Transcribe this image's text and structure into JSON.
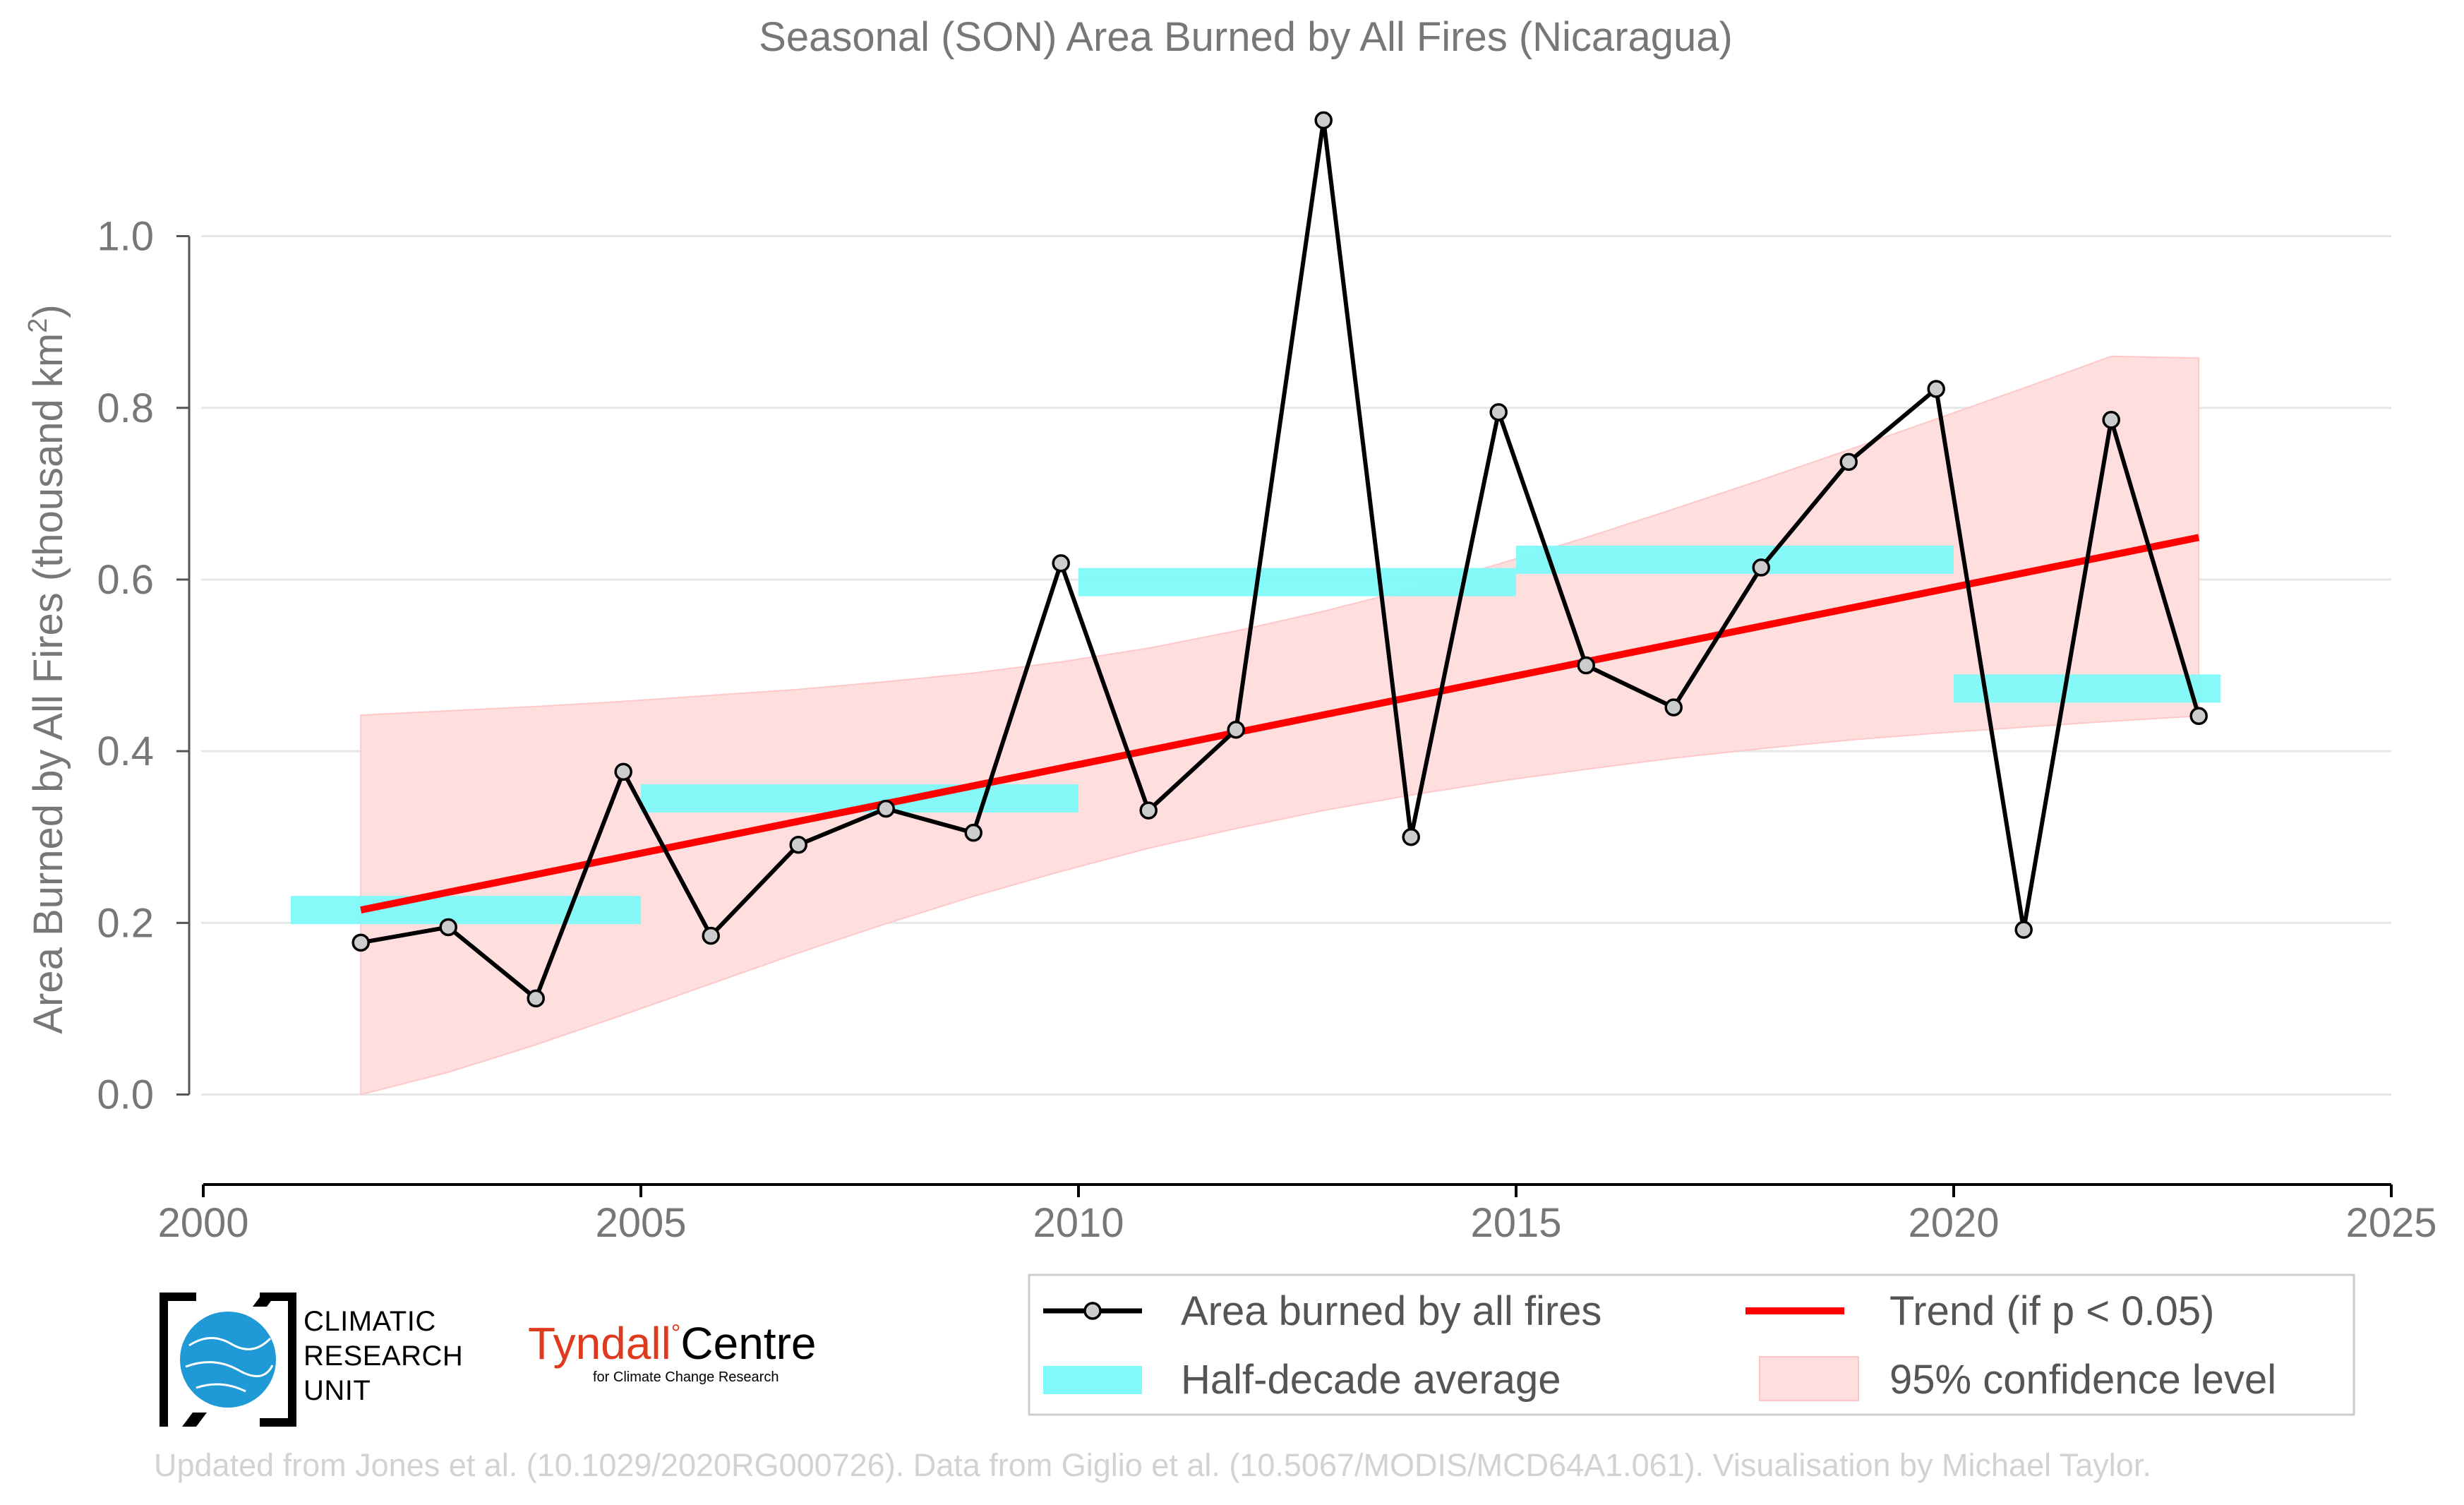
{
  "colors": {
    "title": "#777777",
    "line": "#000000",
    "marker_fill": "#cccccc",
    "half_decade": "#7ff9f9",
    "trend": "#ff0000",
    "confidence": "#ffdede",
    "grid": "#e6e6e6",
    "footer": "#d2d2d2",
    "tyndall_red": "#e03a1e",
    "cru_blue": "#1f9ad6"
  },
  "chart_data": {
    "type": "line",
    "title": "Seasonal (SON) Area Burned by All Fires (Nicaragua)",
    "ylabel_main": "Area Burned by All Fires (thousand km",
    "ylabel_sup": "2",
    "ylabel_close": ")",
    "xlabel": "",
    "xlim": [
      2000,
      2025
    ],
    "ylim": [
      -0.09,
      1.16
    ],
    "xticks": [
      2000,
      2005,
      2010,
      2015,
      2020,
      2025
    ],
    "xtick_labels": [
      "2000",
      "2005",
      "2010",
      "2015",
      "2020",
      "2025"
    ],
    "yticks": [
      0.0,
      0.2,
      0.4,
      0.6,
      0.8,
      1.0
    ],
    "ytick_labels": [
      "0.0",
      "0.2",
      "0.4",
      "0.6",
      "0.8",
      "1.0"
    ],
    "grid": "horizontal",
    "series": [
      {
        "name": "Area burned by all fires",
        "x": [
          2001.8,
          2002.8,
          2003.8,
          2004.8,
          2005.8,
          2006.8,
          2007.8,
          2008.8,
          2009.8,
          2010.8,
          2011.8,
          2012.8,
          2013.8,
          2014.8,
          2015.8,
          2016.8,
          2017.8,
          2018.8,
          2019.8,
          2020.8,
          2021.8,
          2022.8
        ],
        "y": [
          0.177,
          0.195,
          0.112,
          0.376,
          0.185,
          0.291,
          0.333,
          0.305,
          0.619,
          0.331,
          0.425,
          1.135,
          0.3,
          0.795,
          0.5,
          0.451,
          0.614,
          0.737,
          0.822,
          0.192,
          0.786,
          0.441
        ]
      }
    ],
    "half_decade": [
      {
        "x0": 2001,
        "x1": 2005,
        "y": 0.215
      },
      {
        "x0": 2005,
        "x1": 2010,
        "y": 0.345
      },
      {
        "x0": 2010,
        "x1": 2015,
        "y": 0.597
      },
      {
        "x0": 2015,
        "x1": 2020,
        "y": 0.623
      },
      {
        "x0": 2020,
        "x1": 2023.05,
        "y": 0.473
      }
    ],
    "trend": {
      "x": [
        2001.8,
        2022.8
      ],
      "y": [
        0.215,
        0.649
      ]
    },
    "confidence": {
      "x": [
        2001.8,
        2002.8,
        2003.8,
        2004.8,
        2005.8,
        2006.8,
        2007.8,
        2008.8,
        2009.8,
        2010.8,
        2011.8,
        2012.8,
        2013.8,
        2014.8,
        2015.8,
        2016.8,
        2017.8,
        2018.8,
        2019.8,
        2020.8,
        2021.8,
        2022.8
      ],
      "upper": [
        0.442,
        0.447,
        0.452,
        0.458,
        0.465,
        0.472,
        0.481,
        0.491,
        0.504,
        0.52,
        0.54,
        0.563,
        0.589,
        0.618,
        0.649,
        0.682,
        0.716,
        0.751,
        0.787,
        0.823,
        0.86,
        0.858
      ],
      "lower": [
        0.0,
        0.026,
        0.058,
        0.093,
        0.129,
        0.165,
        0.199,
        0.231,
        0.26,
        0.287,
        0.31,
        0.331,
        0.349,
        0.365,
        0.379,
        0.392,
        0.403,
        0.413,
        0.421,
        0.428,
        0.435,
        0.441
      ]
    },
    "legend": {
      "position": "bottom-right",
      "items": [
        {
          "key": "line",
          "label": "Area burned by all fires"
        },
        {
          "key": "trend",
          "label": "Trend (if p < 0.05)"
        },
        {
          "key": "half",
          "label": "Half-decade average"
        },
        {
          "key": "ci",
          "label": "95% confidence level"
        }
      ]
    }
  },
  "logos": {
    "cru_lines": [
      "CLIMATIC",
      "RESEARCH",
      "UNIT"
    ],
    "tyndall_a": "Tyndall",
    "tyndall_deg": "°",
    "tyndall_b": "Centre",
    "tyndall_sub": "for Climate Change Research"
  },
  "footer": "Updated from Jones et al. (10.1029/2020RG000726). Data from Giglio et al. (10.5067/MODIS/MCD64A1.061). Visualisation by Michael Taylor."
}
